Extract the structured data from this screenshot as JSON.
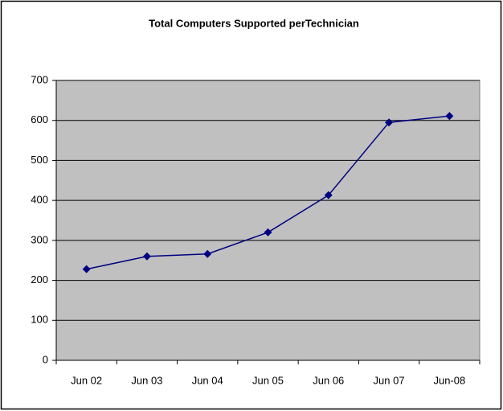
{
  "chart_data": {
    "type": "line",
    "title": "Total Computers Supported perTechnician",
    "categories": [
      "Jun 02",
      "Jun 03",
      "Jun 04",
      "Jun 05",
      "Jun 06",
      "Jun 07",
      "Jun-08"
    ],
    "series": [
      {
        "color": "#000080",
        "values": [
          228,
          260,
          266,
          320,
          413,
          595,
          611
        ]
      }
    ],
    "ylim": [
      0,
      700
    ],
    "yticks": [
      0,
      100,
      200,
      300,
      400,
      500,
      600,
      700
    ],
    "grid": true,
    "background": "#c0c0c0"
  }
}
